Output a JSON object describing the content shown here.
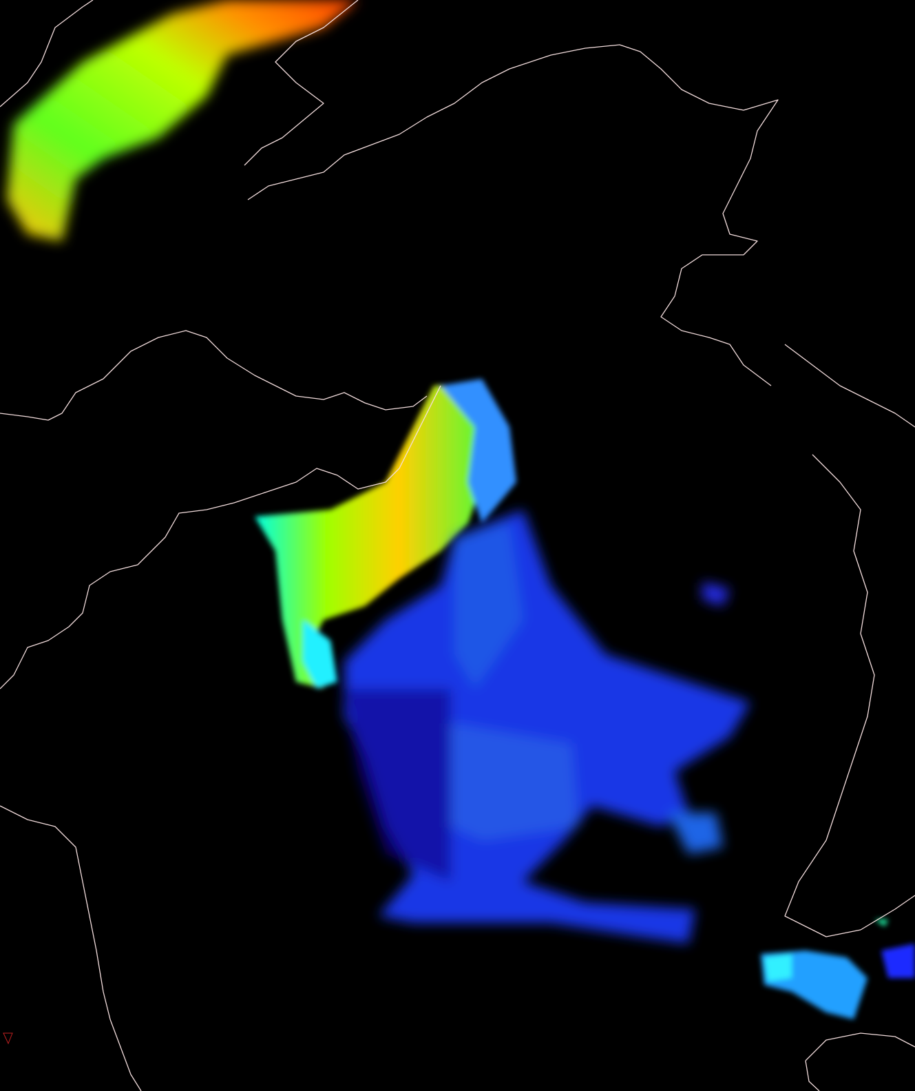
{
  "map": {
    "background_color": "#000000",
    "coastline_color": "#f4dede",
    "colormap": [
      "#1a00ff",
      "#0050ff",
      "#00e0ff",
      "#40ff40",
      "#c8ff00",
      "#ffa000",
      "#ff3000"
    ],
    "layers": [
      "data-overlay",
      "coastlines"
    ]
  }
}
